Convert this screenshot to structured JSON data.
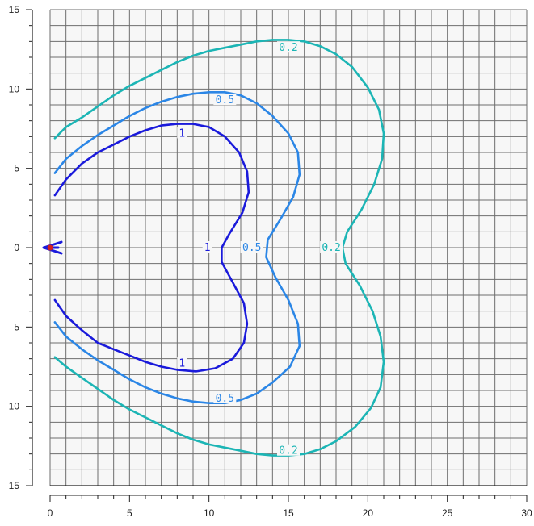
{
  "chart_data": {
    "type": "contour",
    "title": "",
    "xlabel": "",
    "ylabel": "",
    "xlim": [
      0,
      30
    ],
    "ylim": [
      -15,
      15
    ],
    "grid": true,
    "grid_step": 1,
    "x_ticks": [
      0,
      5,
      10,
      15,
      20,
      25,
      30
    ],
    "y_ticks": [
      15,
      10,
      5,
      0,
      -5,
      -10,
      -15
    ],
    "x_tick_labels": [
      "0",
      "5",
      "10",
      "15",
      "20",
      "25",
      "30"
    ],
    "y_tick_labels": [
      "15",
      "10",
      "5",
      "0",
      "5",
      "10",
      "15"
    ],
    "colors": {
      "level_1": "#1a1adb",
      "level_0_5": "#2b86e6",
      "level_0_2": "#1cb5b5",
      "marker": "#d42020",
      "arrow": "#1a1adb",
      "grid": "#6e6e6e",
      "axis": "#222222"
    },
    "series": [
      {
        "level": 1,
        "color": "#1a1adb",
        "points": [
          [
            0.3,
            3.3
          ],
          [
            1,
            4.3
          ],
          [
            2,
            5.3
          ],
          [
            3,
            6
          ],
          [
            4,
            6.5
          ],
          [
            5,
            7
          ],
          [
            6,
            7.4
          ],
          [
            7,
            7.7
          ],
          [
            8,
            7.8
          ],
          [
            9,
            7.8
          ],
          [
            10,
            7.6
          ],
          [
            11,
            7
          ],
          [
            11.9,
            6
          ],
          [
            12.4,
            4.8
          ],
          [
            12.5,
            3.5
          ],
          [
            12.1,
            2.2
          ],
          [
            11.3,
            0.9
          ],
          [
            10.8,
            0
          ],
          [
            10.8,
            -0.9
          ],
          [
            11.5,
            -2.2
          ],
          [
            12.2,
            -3.5
          ],
          [
            12.4,
            -4.8
          ],
          [
            12.2,
            -6
          ],
          [
            11.5,
            -7
          ],
          [
            10.4,
            -7.6
          ],
          [
            9.2,
            -7.8
          ],
          [
            8,
            -7.7
          ],
          [
            7,
            -7.5
          ],
          [
            6,
            -7.2
          ],
          [
            5,
            -6.8
          ],
          [
            4,
            -6.4
          ],
          [
            3,
            -6
          ],
          [
            2,
            -5.2
          ],
          [
            1,
            -4.3
          ],
          [
            0.3,
            -3.3
          ]
        ],
        "labels": [
          {
            "text": "1",
            "x": 8.3,
            "y": 7.2
          },
          {
            "text": "1",
            "x": 9.9,
            "y": 0
          },
          {
            "text": "1",
            "x": 8.3,
            "y": -7.3
          }
        ]
      },
      {
        "level": 0.5,
        "color": "#2b86e6",
        "points": [
          [
            0.3,
            4.7
          ],
          [
            1,
            5.6
          ],
          [
            2,
            6.4
          ],
          [
            3,
            7.1
          ],
          [
            4,
            7.7
          ],
          [
            5,
            8.3
          ],
          [
            6,
            8.8
          ],
          [
            7,
            9.2
          ],
          [
            8,
            9.5
          ],
          [
            9,
            9.7
          ],
          [
            10,
            9.8
          ],
          [
            11,
            9.8
          ],
          [
            12,
            9.6
          ],
          [
            13,
            9.1
          ],
          [
            14,
            8.3
          ],
          [
            15,
            7.2
          ],
          [
            15.6,
            6
          ],
          [
            15.7,
            4.6
          ],
          [
            15.3,
            3.2
          ],
          [
            14.5,
            1.8
          ],
          [
            13.7,
            0.5
          ],
          [
            13.6,
            -0.6
          ],
          [
            14.2,
            -1.9
          ],
          [
            15,
            -3.3
          ],
          [
            15.6,
            -4.8
          ],
          [
            15.7,
            -6.2
          ],
          [
            15.1,
            -7.5
          ],
          [
            14,
            -8.5
          ],
          [
            13,
            -9.2
          ],
          [
            12,
            -9.6
          ],
          [
            11,
            -9.8
          ],
          [
            10,
            -9.8
          ],
          [
            9,
            -9.7
          ],
          [
            8,
            -9.5
          ],
          [
            7,
            -9.2
          ],
          [
            6,
            -8.8
          ],
          [
            5,
            -8.3
          ],
          [
            4,
            -7.7
          ],
          [
            3,
            -7.1
          ],
          [
            2,
            -6.4
          ],
          [
            1,
            -5.6
          ],
          [
            0.3,
            -4.7
          ]
        ],
        "labels": [
          {
            "text": "0.5",
            "x": 11,
            "y": 9.3
          },
          {
            "text": "0.5",
            "x": 12.7,
            "y": 0
          },
          {
            "text": "0.5",
            "x": 11,
            "y": -9.5
          }
        ]
      },
      {
        "level": 0.2,
        "color": "#1cb5b5",
        "points": [
          [
            0.3,
            6.9
          ],
          [
            1,
            7.6
          ],
          [
            2,
            8.2
          ],
          [
            3,
            8.9
          ],
          [
            4,
            9.6
          ],
          [
            5,
            10.2
          ],
          [
            6,
            10.7
          ],
          [
            7,
            11.2
          ],
          [
            8,
            11.7
          ],
          [
            9,
            12.1
          ],
          [
            10,
            12.4
          ],
          [
            11,
            12.6
          ],
          [
            12,
            12.8
          ],
          [
            13,
            13
          ],
          [
            14,
            13.1
          ],
          [
            15,
            13.1
          ],
          [
            16,
            13
          ],
          [
            17,
            12.7
          ],
          [
            18,
            12.2
          ],
          [
            19,
            11.4
          ],
          [
            20,
            10.1
          ],
          [
            20.7,
            8.7
          ],
          [
            21,
            7.2
          ],
          [
            20.9,
            5.6
          ],
          [
            20.4,
            4
          ],
          [
            19.6,
            2.4
          ],
          [
            18.7,
            1
          ],
          [
            18.4,
            0
          ],
          [
            18.6,
            -1
          ],
          [
            19.5,
            -2.4
          ],
          [
            20.3,
            -4
          ],
          [
            20.8,
            -5.6
          ],
          [
            21,
            -7.2
          ],
          [
            20.8,
            -8.8
          ],
          [
            20.2,
            -10.1
          ],
          [
            19.2,
            -11.3
          ],
          [
            18,
            -12.2
          ],
          [
            17,
            -12.7
          ],
          [
            16,
            -13
          ],
          [
            15,
            -13.1
          ],
          [
            14,
            -13.1
          ],
          [
            13,
            -13
          ],
          [
            12,
            -12.8
          ],
          [
            11,
            -12.6
          ],
          [
            10,
            -12.4
          ],
          [
            9,
            -12.1
          ],
          [
            8,
            -11.7
          ],
          [
            7,
            -11.2
          ],
          [
            6,
            -10.7
          ],
          [
            5,
            -10.2
          ],
          [
            4,
            -9.6
          ],
          [
            3,
            -8.9
          ],
          [
            2,
            -8.2
          ],
          [
            1,
            -7.5
          ],
          [
            0.3,
            -6.9
          ]
        ],
        "labels": [
          {
            "text": "0.2",
            "x": 15,
            "y": 12.6
          },
          {
            "text": "0.2",
            "x": 17.7,
            "y": 0
          },
          {
            "text": "0.2",
            "x": 15,
            "y": -12.8
          }
        ]
      }
    ],
    "source_marker": {
      "x": 0,
      "y": 0,
      "color": "#d42020"
    }
  }
}
